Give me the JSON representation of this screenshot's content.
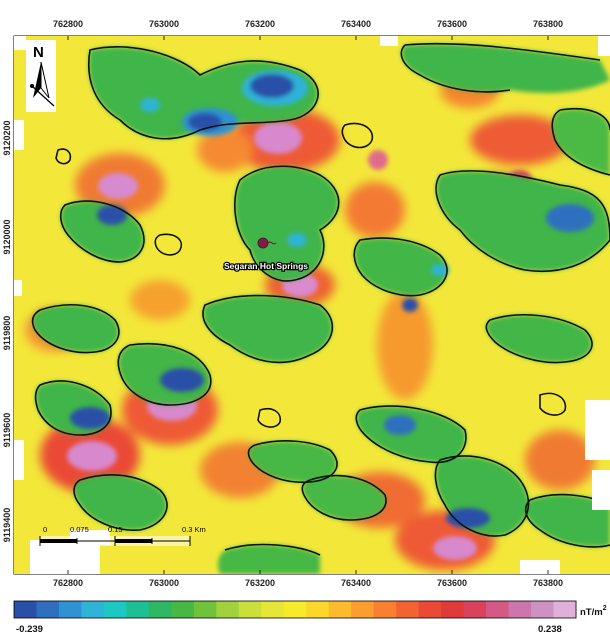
{
  "map": {
    "x_ticks": [
      "762800",
      "763000",
      "763200",
      "763400",
      "763600",
      "763800"
    ],
    "y_ticks": [
      "9120200",
      "9120000",
      "9119800",
      "9119600",
      "9119400"
    ],
    "feature_label": "Segaran Hot Springs",
    "north_label": "N",
    "scale_bar": {
      "labels": [
        "0",
        "0.075",
        "0.15",
        "0.3 Km"
      ]
    }
  },
  "legend": {
    "min_label": "-0.239",
    "max_label": "0.238",
    "unit": "nT/m",
    "unit_exponent": "2",
    "colors": [
      "#2a4fa8",
      "#2f6fc0",
      "#2f92d2",
      "#2fb3d8",
      "#1fc7c2",
      "#1fbf95",
      "#2fb864",
      "#46b843",
      "#6fc23a",
      "#9fd23c",
      "#cadf3a",
      "#e6e638",
      "#f6ea2a",
      "#fbd72a",
      "#fcbb2c",
      "#fb9e2e",
      "#f98030",
      "#f36332",
      "#ea4a34",
      "#e03a3a",
      "#d9415c",
      "#d45a86",
      "#cc76ac",
      "#cc92c4",
      "#e0b0da"
    ]
  }
}
